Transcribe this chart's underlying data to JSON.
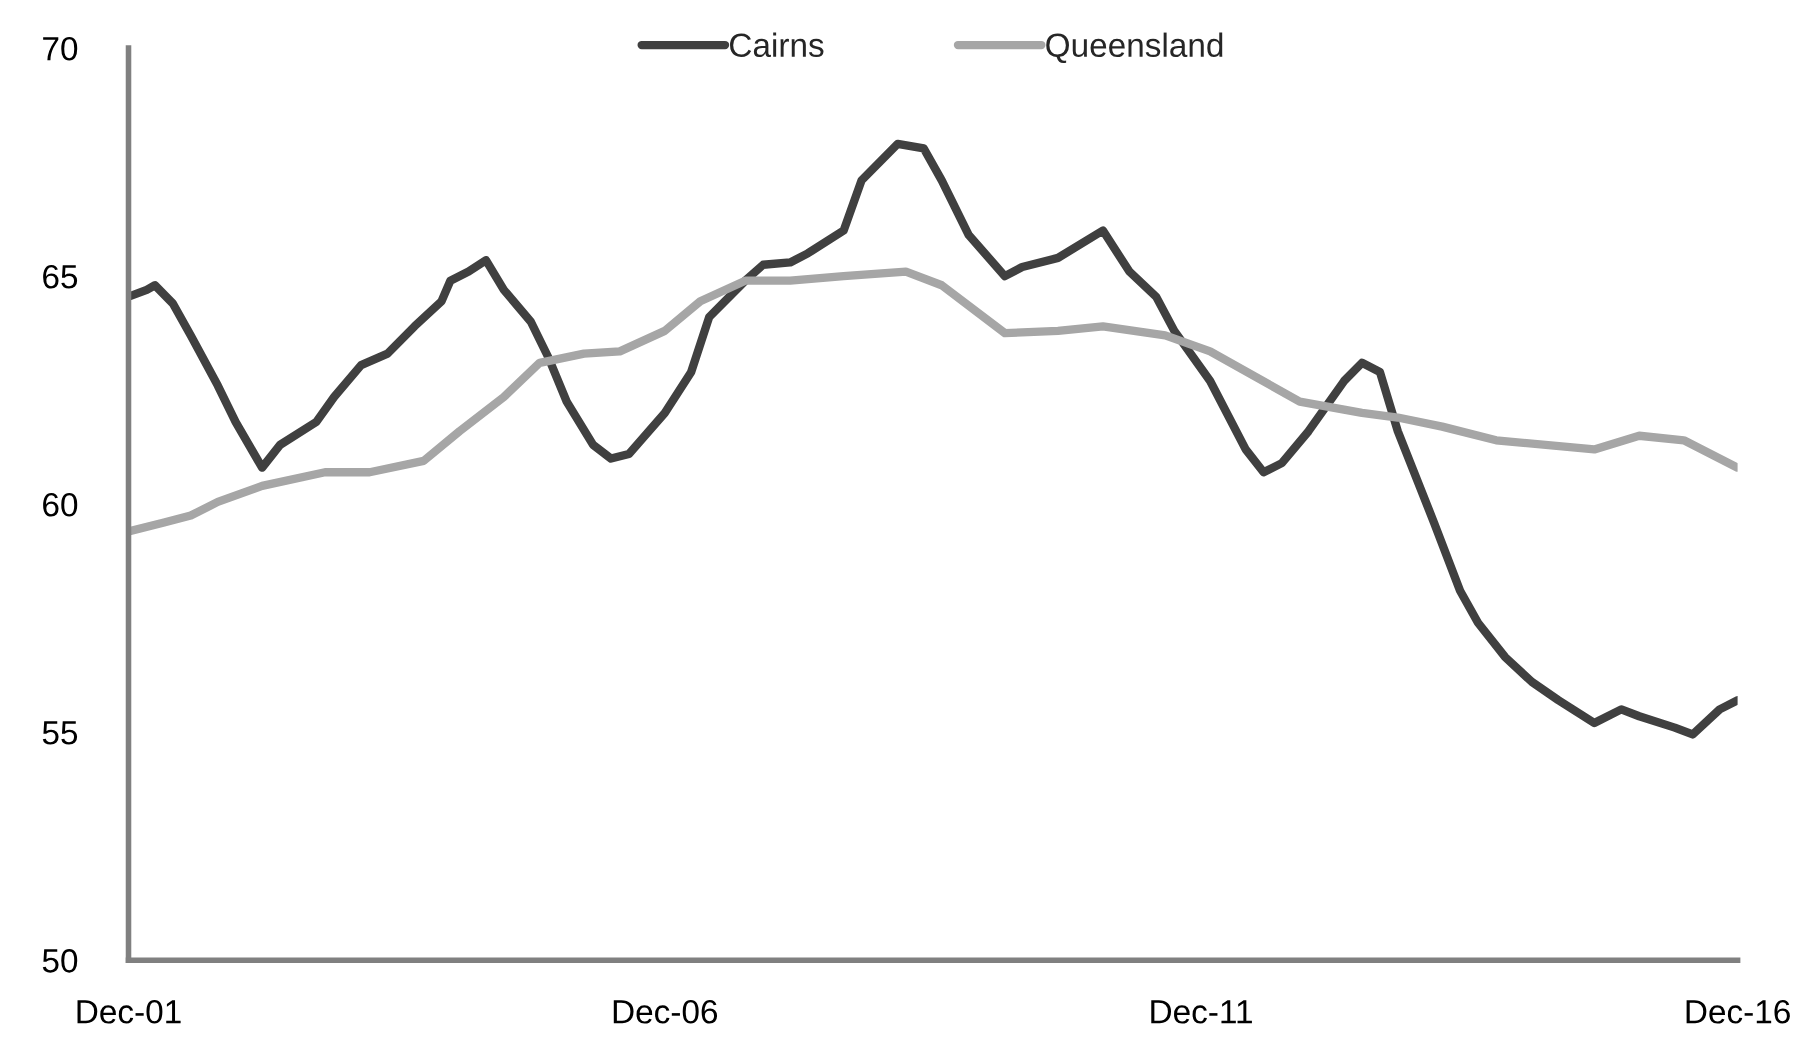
{
  "chart_data": {
    "type": "line",
    "xlim": [
      "2001-12",
      "2016-12"
    ],
    "xticks": [
      {
        "value": "2001-12",
        "label": "Dec-01"
      },
      {
        "value": "2006-12",
        "label": "Dec-06"
      },
      {
        "value": "2011-12",
        "label": "Dec-11"
      },
      {
        "value": "2016-12",
        "label": "Dec-16"
      }
    ],
    "ylim": [
      50,
      70
    ],
    "yticks": [
      50,
      55,
      60,
      65,
      70
    ],
    "grid": false,
    "legend": "top",
    "marker": "none",
    "line_style": "solid",
    "series": [
      {
        "name": "Cairns",
        "color": "#404040",
        "x": [
          "2001-12",
          "2002-02",
          "2002-03",
          "2002-05",
          "2002-07",
          "2002-10",
          "2002-12",
          "2003-03",
          "2003-05",
          "2003-09",
          "2003-11",
          "2004-02",
          "2004-05",
          "2004-08",
          "2004-11",
          "2004-12",
          "2005-02",
          "2005-04",
          "2005-06",
          "2005-09",
          "2005-11",
          "2006-01",
          "2006-04",
          "2006-06",
          "2006-08",
          "2006-12",
          "2007-03",
          "2007-05",
          "2007-09",
          "2007-11",
          "2008-02",
          "2008-04",
          "2008-08",
          "2008-10",
          "2009-02",
          "2009-05",
          "2009-07",
          "2009-10",
          "2010-02",
          "2010-04",
          "2010-08",
          "2011-01",
          "2011-04",
          "2011-07",
          "2011-09",
          "2012-01",
          "2012-05",
          "2012-07",
          "2012-09",
          "2012-12",
          "2013-04",
          "2013-06",
          "2013-08",
          "2013-10",
          "2014-02",
          "2014-05",
          "2014-07",
          "2014-10",
          "2015-01",
          "2015-04",
          "2015-08",
          "2015-11",
          "2016-01",
          "2016-05",
          "2016-07",
          "2016-10",
          "2016-12"
        ],
        "values": [
          64.55,
          64.7,
          64.8,
          64.4,
          63.7,
          62.6,
          61.8,
          60.8,
          61.3,
          61.8,
          62.35,
          63.05,
          63.3,
          63.9,
          64.45,
          64.9,
          65.1,
          65.35,
          64.7,
          64.0,
          63.2,
          62.25,
          61.3,
          61.0,
          61.1,
          62.0,
          62.9,
          64.1,
          64.9,
          65.25,
          65.3,
          65.5,
          66.0,
          67.1,
          67.9,
          67.8,
          67.1,
          65.9,
          65.0,
          65.2,
          65.4,
          66.0,
          65.1,
          64.55,
          63.8,
          62.7,
          61.2,
          60.7,
          60.9,
          61.6,
          62.7,
          63.1,
          62.9,
          61.6,
          59.6,
          58.1,
          57.4,
          56.65,
          56.1,
          55.7,
          55.2,
          55.5,
          55.35,
          55.1,
          54.95,
          55.5,
          55.7
        ]
      },
      {
        "name": "Queensland",
        "color": "#a6a6a6",
        "x": [
          "2001-12",
          "2002-04",
          "2002-07",
          "2002-10",
          "2003-03",
          "2003-10",
          "2004-03",
          "2004-09",
          "2005-01",
          "2005-06",
          "2005-10",
          "2006-03",
          "2006-07",
          "2006-12",
          "2007-04",
          "2007-09",
          "2008-02",
          "2008-08",
          "2009-03",
          "2009-07",
          "2010-02",
          "2010-08",
          "2011-01",
          "2011-08",
          "2012-01",
          "2012-06",
          "2012-11",
          "2013-06",
          "2013-10",
          "2014-03",
          "2014-09",
          "2015-08",
          "2016-01",
          "2016-06",
          "2016-12"
        ],
        "values": [
          59.4,
          59.6,
          59.75,
          60.05,
          60.4,
          60.7,
          60.7,
          60.95,
          61.6,
          62.35,
          63.1,
          63.3,
          63.35,
          63.8,
          64.45,
          64.9,
          64.9,
          65.0,
          65.1,
          64.8,
          63.75,
          63.8,
          63.9,
          63.7,
          63.35,
          62.8,
          62.25,
          62.0,
          61.9,
          61.7,
          61.4,
          61.2,
          61.5,
          61.4,
          60.8
        ]
      }
    ]
  }
}
